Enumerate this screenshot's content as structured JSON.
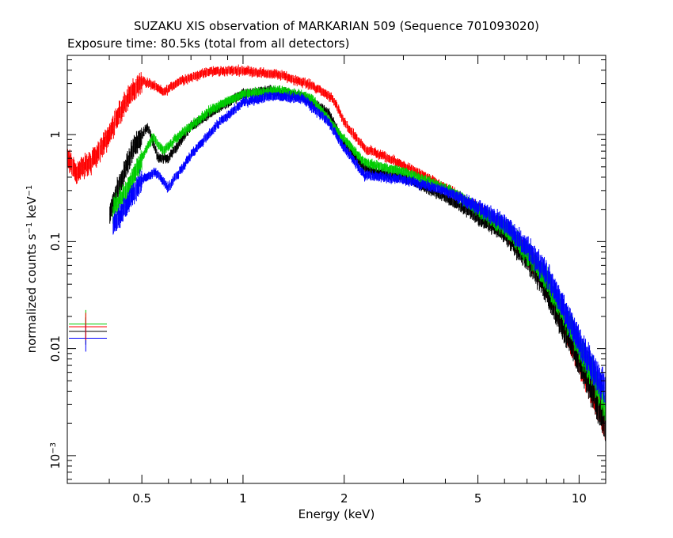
{
  "chart_data": {
    "type": "scatter",
    "title": "SUZAKU XIS observation of MARKARIAN 509 (Sequence 701093020)",
    "subtitle": "Exposure time: 80.5ks (total from all detectors)",
    "xlabel": "Energy (keV)",
    "ylabel": "normalized counts s",
    "ylabel_sup1": "−1",
    "ylabel_mid": " keV",
    "ylabel_sup2": "−1",
    "x_scale": "log",
    "y_scale": "log",
    "xlim": [
      0.3,
      12.0
    ],
    "ylim": [
      0.00055,
      5.5
    ],
    "x_tick_labels": [
      {
        "value": 0.5,
        "label": "0.5"
      },
      {
        "value": 1,
        "label": "1"
      },
      {
        "value": 2,
        "label": "2"
      },
      {
        "value": 5,
        "label": "5"
      },
      {
        "value": 10,
        "label": "10"
      }
    ],
    "y_tick_labels": [
      {
        "value": 0.001,
        "base": "10",
        "exp": "−3"
      },
      {
        "value": 0.01,
        "label": "0.01"
      },
      {
        "value": 0.1,
        "label": "0.1"
      },
      {
        "value": 1,
        "label": "1"
      }
    ],
    "grid": false,
    "legend": "none",
    "series": [
      {
        "color": "#ff0000",
        "e_range": [
          0.3,
          12.0
        ],
        "points": [
          [
            0.3,
            0.6
          ],
          [
            0.32,
            0.45
          ],
          [
            0.35,
            0.55
          ],
          [
            0.38,
            0.75
          ],
          [
            0.42,
            1.4
          ],
          [
            0.45,
            2.2
          ],
          [
            0.5,
            3.2
          ],
          [
            0.54,
            2.9
          ],
          [
            0.58,
            2.5
          ],
          [
            0.65,
            3.2
          ],
          [
            0.8,
            3.9
          ],
          [
            1.0,
            4.0
          ],
          [
            1.3,
            3.6
          ],
          [
            1.6,
            2.9
          ],
          [
            1.85,
            2.2
          ],
          [
            2.0,
            1.3
          ],
          [
            2.3,
            0.75
          ],
          [
            3.0,
            0.52
          ],
          [
            4.0,
            0.32
          ],
          [
            5.0,
            0.2
          ],
          [
            6.0,
            0.13
          ],
          [
            7.0,
            0.08
          ],
          [
            8.0,
            0.04
          ],
          [
            9.0,
            0.018
          ],
          [
            10.0,
            0.008
          ],
          [
            11.0,
            0.004
          ],
          [
            12.0,
            0.002
          ]
        ]
      },
      {
        "color": "#000000",
        "e_range": [
          0.4,
          12.0
        ],
        "points": [
          [
            0.4,
            0.18
          ],
          [
            0.43,
            0.35
          ],
          [
            0.47,
            0.75
          ],
          [
            0.52,
            1.2
          ],
          [
            0.56,
            0.6
          ],
          [
            0.6,
            0.6
          ],
          [
            0.7,
            1.2
          ],
          [
            0.85,
            1.8
          ],
          [
            1.0,
            2.4
          ],
          [
            1.2,
            2.6
          ],
          [
            1.5,
            2.3
          ],
          [
            1.8,
            1.6
          ],
          [
            1.95,
            0.95
          ],
          [
            2.3,
            0.48
          ],
          [
            3.0,
            0.4
          ],
          [
            4.0,
            0.26
          ],
          [
            5.0,
            0.17
          ],
          [
            6.0,
            0.12
          ],
          [
            7.0,
            0.07
          ],
          [
            8.0,
            0.035
          ],
          [
            9.0,
            0.016
          ],
          [
            10.0,
            0.008
          ],
          [
            11.0,
            0.004
          ],
          [
            12.0,
            0.002
          ]
        ]
      },
      {
        "color": "#00cc00",
        "e_range": [
          0.41,
          12.0
        ],
        "points": [
          [
            0.41,
            0.2
          ],
          [
            0.45,
            0.3
          ],
          [
            0.5,
            0.6
          ],
          [
            0.54,
            0.95
          ],
          [
            0.58,
            0.7
          ],
          [
            0.65,
            1.0
          ],
          [
            0.8,
            1.7
          ],
          [
            1.0,
            2.4
          ],
          [
            1.3,
            2.6
          ],
          [
            1.6,
            2.2
          ],
          [
            1.9,
            1.1
          ],
          [
            2.3,
            0.55
          ],
          [
            3.0,
            0.45
          ],
          [
            4.0,
            0.32
          ],
          [
            5.0,
            0.2
          ],
          [
            6.0,
            0.14
          ],
          [
            7.0,
            0.08
          ],
          [
            8.0,
            0.045
          ],
          [
            9.0,
            0.022
          ],
          [
            10.0,
            0.011
          ],
          [
            11.0,
            0.006
          ],
          [
            12.0,
            0.003
          ]
        ]
      },
      {
        "color": "#0000ff",
        "e_range": [
          0.41,
          12.0
        ],
        "points": [
          [
            0.41,
            0.14
          ],
          [
            0.45,
            0.22
          ],
          [
            0.5,
            0.38
          ],
          [
            0.55,
            0.45
          ],
          [
            0.6,
            0.32
          ],
          [
            0.7,
            0.65
          ],
          [
            0.85,
            1.3
          ],
          [
            1.0,
            2.0
          ],
          [
            1.2,
            2.3
          ],
          [
            1.5,
            2.2
          ],
          [
            1.8,
            1.3
          ],
          [
            2.0,
            0.75
          ],
          [
            2.3,
            0.42
          ],
          [
            3.0,
            0.38
          ],
          [
            4.0,
            0.3
          ],
          [
            5.0,
            0.21
          ],
          [
            6.0,
            0.15
          ],
          [
            7.0,
            0.09
          ],
          [
            8.0,
            0.05
          ],
          [
            9.0,
            0.025
          ],
          [
            10.0,
            0.012
          ],
          [
            11.0,
            0.007
          ],
          [
            12.0,
            0.004
          ]
        ]
      }
    ],
    "isolated_points": [
      {
        "x": 0.335,
        "y": 0.0145,
        "color": "#000000"
      },
      {
        "x": 0.335,
        "y": 0.017,
        "color": "#00cc00"
      },
      {
        "x": 0.335,
        "y": 0.0125,
        "color": "#0000ff"
      },
      {
        "x": 0.335,
        "y": 0.016,
        "color": "#ff0000"
      }
    ]
  }
}
